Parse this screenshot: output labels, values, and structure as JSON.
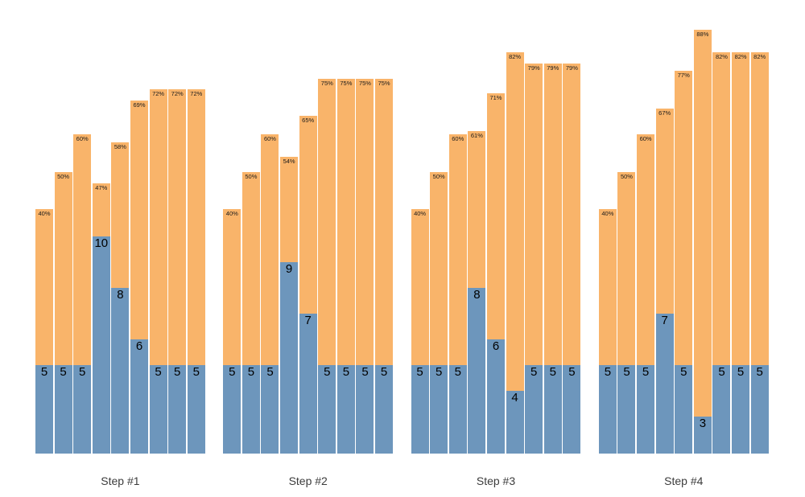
{
  "chart_data": {
    "type": "bar",
    "stacked": true,
    "title": "",
    "xlabel": "",
    "ylabel": "",
    "legend": "none",
    "background": "#ffffff",
    "colors": {
      "bottom_segment": "#6d96bc",
      "top_segment": "#f9b46a",
      "percent_label": "#1a1a1a",
      "value_label": "#000000",
      "step_label": "#3c3c3c"
    },
    "groups": [
      {
        "label": "Step #1",
        "bars": [
          {
            "value": 5,
            "percent": 40,
            "value_label": "5",
            "pct_label": "40%"
          },
          {
            "value": 5,
            "percent": 50,
            "value_label": "5",
            "pct_label": "50%"
          },
          {
            "value": 5,
            "percent": 60,
            "value_label": "5",
            "pct_label": "60%"
          },
          {
            "value": 10,
            "percent": 47,
            "value_label": "10",
            "pct_label": "47%"
          },
          {
            "value": 8,
            "percent": 58,
            "value_label": "8",
            "pct_label": "58%"
          },
          {
            "value": 6,
            "percent": 69,
            "value_label": "6",
            "pct_label": "69%"
          },
          {
            "value": 5,
            "percent": 72,
            "value_label": "5",
            "pct_label": "72%"
          },
          {
            "value": 5,
            "percent": 72,
            "value_label": "5",
            "pct_label": "72%"
          },
          {
            "value": 5,
            "percent": 72,
            "value_label": "5",
            "pct_label": "72%"
          }
        ]
      },
      {
        "label": "Step #2",
        "bars": [
          {
            "value": 5,
            "percent": 40,
            "value_label": "5",
            "pct_label": "40%"
          },
          {
            "value": 5,
            "percent": 50,
            "value_label": "5",
            "pct_label": "50%"
          },
          {
            "value": 5,
            "percent": 60,
            "value_label": "5",
            "pct_label": "60%"
          },
          {
            "value": 9,
            "percent": 54,
            "value_label": "9",
            "pct_label": "54%"
          },
          {
            "value": 7,
            "percent": 65,
            "value_label": "7",
            "pct_label": "65%"
          },
          {
            "value": 5,
            "percent": 75,
            "value_label": "5",
            "pct_label": "75%"
          },
          {
            "value": 5,
            "percent": 75,
            "value_label": "5",
            "pct_label": "75%"
          },
          {
            "value": 5,
            "percent": 75,
            "value_label": "5",
            "pct_label": "75%"
          },
          {
            "value": 5,
            "percent": 75,
            "value_label": "5",
            "pct_label": "75%"
          }
        ]
      },
      {
        "label": "Step #3",
        "bars": [
          {
            "value": 5,
            "percent": 40,
            "value_label": "5",
            "pct_label": "40%"
          },
          {
            "value": 5,
            "percent": 50,
            "value_label": "5",
            "pct_label": "50%"
          },
          {
            "value": 5,
            "percent": 60,
            "value_label": "5",
            "pct_label": "60%"
          },
          {
            "value": 8,
            "percent": 61,
            "value_label": "8",
            "pct_label": "61%"
          },
          {
            "value": 6,
            "percent": 71,
            "value_label": "6",
            "pct_label": "71%"
          },
          {
            "value": 4,
            "percent": 82,
            "value_label": "4",
            "pct_label": "82%"
          },
          {
            "value": 5,
            "percent": 79,
            "value_label": "5",
            "pct_label": "79%"
          },
          {
            "value": 5,
            "percent": 79,
            "value_label": "5",
            "pct_label": "79%"
          },
          {
            "value": 5,
            "percent": 79,
            "value_label": "5",
            "pct_label": "79%"
          }
        ]
      },
      {
        "label": "Step #4",
        "bars": [
          {
            "value": 5,
            "percent": 40,
            "value_label": "5",
            "pct_label": "40%"
          },
          {
            "value": 5,
            "percent": 50,
            "value_label": "5",
            "pct_label": "50%"
          },
          {
            "value": 5,
            "percent": 60,
            "value_label": "5",
            "pct_label": "60%"
          },
          {
            "value": 7,
            "percent": 67,
            "value_label": "7",
            "pct_label": "67%"
          },
          {
            "value": 5,
            "percent": 77,
            "value_label": "5",
            "pct_label": "77%"
          },
          {
            "value": 3,
            "percent": 88,
            "value_label": "3",
            "pct_label": "88%"
          },
          {
            "value": 5,
            "percent": 82,
            "value_label": "5",
            "pct_label": "82%"
          },
          {
            "value": 5,
            "percent": 82,
            "value_label": "5",
            "pct_label": "82%"
          },
          {
            "value": 5,
            "percent": 82,
            "value_label": "5",
            "pct_label": "82%"
          }
        ]
      }
    ]
  }
}
